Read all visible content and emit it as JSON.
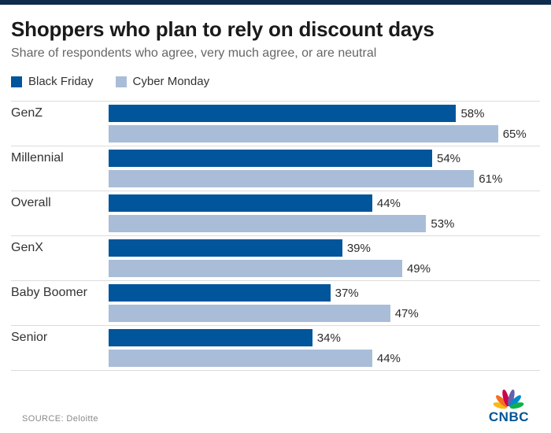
{
  "colors": {
    "top_bar": "#0f2b4c",
    "black_friday": "#00559b",
    "cyber_monday": "#a9bdd8",
    "brand_blue": "#005594",
    "gridline": "#dcdcdc",
    "peacock": [
      "#fcb711",
      "#f37021",
      "#cc004c",
      "#6460aa",
      "#0089d0",
      "#0db14b"
    ]
  },
  "header": {
    "title": "Shoppers who plan to rely on discount days",
    "subtitle": "Share of respondents who agree, very much agree, or are neutral"
  },
  "legend": [
    {
      "label": "Black Friday",
      "color": "#00559b"
    },
    {
      "label": "Cyber Monday",
      "color": "#a9bdd8"
    }
  ],
  "chart_data": {
    "type": "bar",
    "orientation": "horizontal",
    "title": "Shoppers who plan to rely on discount days",
    "subtitle": "Share of respondents who agree, very much agree, or are neutral",
    "categories": [
      "GenZ",
      "Millennial",
      "Overall",
      "GenX",
      "Baby Boomer",
      "Senior"
    ],
    "series": [
      {
        "name": "Black Friday",
        "color": "#00559b",
        "values": [
          58,
          54,
          44,
          39,
          37,
          34
        ]
      },
      {
        "name": "Cyber Monday",
        "color": "#a9bdd8",
        "values": [
          65,
          61,
          53,
          49,
          47,
          44
        ]
      }
    ],
    "value_suffix": "%",
    "xlim": [
      0,
      72
    ],
    "grid": "horizontal-separators",
    "legend_position": "top-left"
  },
  "footer": {
    "source_label": "SOURCE:",
    "source_value": "Deloitte",
    "brand": "CNBC"
  }
}
